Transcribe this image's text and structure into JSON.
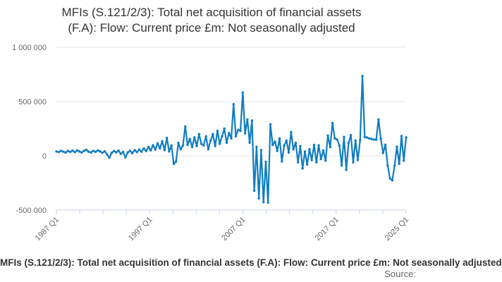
{
  "title": {
    "line1": "MFIs (S.121/2/3): Total net acquisition of financial assets",
    "line2": "(F.A): Flow: Current price £m: Not seasonally adjusted"
  },
  "footer": {
    "series_title": "MFIs (S.121/2/3): Total net acquisition of financial assets (F.A): Flow: Current price £m: Not seasonally adjusted",
    "source_label": "Source:"
  },
  "chart_data": {
    "type": "line",
    "title": "MFIs (S.121/2/3): Total net acquisition of financial assets (F.A): Flow: Current price £m: Not seasonally adjusted",
    "unit": "£m",
    "frequency": "quarterly",
    "x_start": "1987 Q1",
    "x_end": "2025 Q1",
    "x_tick_count": 16,
    "x_tick_labels": [
      "1987 Q1",
      "1997 Q1",
      "2007 Q1",
      "2017 Q1",
      "2025 Q1"
    ],
    "x_tick_label_positions": [
      0,
      4,
      8,
      12,
      15
    ],
    "ylim": [
      -500000,
      1000000
    ],
    "y_ticks": [
      {
        "value": 1000000,
        "label": "1 000 000"
      },
      {
        "value": 500000,
        "label": "500 000"
      },
      {
        "value": 0,
        "label": "0"
      },
      {
        "value": -500000,
        "label": "-500 000"
      }
    ],
    "grid": "horizontal",
    "legend": "none",
    "colors": {
      "line": "#107dc2",
      "grid": "#e6e6e6",
      "axis": "#ccd6eb",
      "labels": "#666666"
    },
    "values": [
      40000,
      34000,
      46000,
      38000,
      30000,
      44000,
      36000,
      48000,
      33000,
      50000,
      40000,
      31000,
      45000,
      55000,
      38000,
      30000,
      46000,
      36000,
      50000,
      40000,
      28000,
      42000,
      12000,
      -18000,
      26000,
      44000,
      32000,
      48000,
      18000,
      36000,
      -14000,
      30000,
      46000,
      24000,
      52000,
      34000,
      58000,
      38000,
      68000,
      44000,
      82000,
      50000,
      98000,
      58000,
      115000,
      68000,
      135000,
      52000,
      165000,
      40000,
      95000,
      -75000,
      -52000,
      120000,
      60000,
      95000,
      271000,
      100000,
      155000,
      80000,
      170000,
      90000,
      200000,
      110000,
      95000,
      180000,
      60000,
      140000,
      200000,
      90000,
      230000,
      110000,
      180000,
      250000,
      120000,
      210000,
      160000,
      475000,
      180000,
      240000,
      230000,
      583000,
      206000,
      335000,
      121000,
      325000,
      -322000,
      83000,
      -393000,
      52000,
      -426000,
      -55000,
      -430000,
      290000,
      100000,
      130000,
      45000,
      160000,
      -52000,
      95000,
      140000,
      30000,
      219000,
      60000,
      120000,
      -60000,
      90000,
      -116000,
      40000,
      -80000,
      60000,
      -40000,
      100000,
      -60000,
      97000,
      -30000,
      50000,
      -45000,
      187000,
      80000,
      303000,
      160000,
      150000,
      95000,
      -90000,
      174000,
      -130000,
      120000,
      190000,
      -60000,
      140000,
      -39000,
      142000,
      735000,
      174000,
      168000,
      160000,
      155000,
      150000,
      148000,
      335000,
      156000,
      26000,
      103000,
      -91000,
      -208000,
      -226000,
      -91000,
      84000,
      -75000,
      182000,
      -45000,
      170000
    ]
  }
}
